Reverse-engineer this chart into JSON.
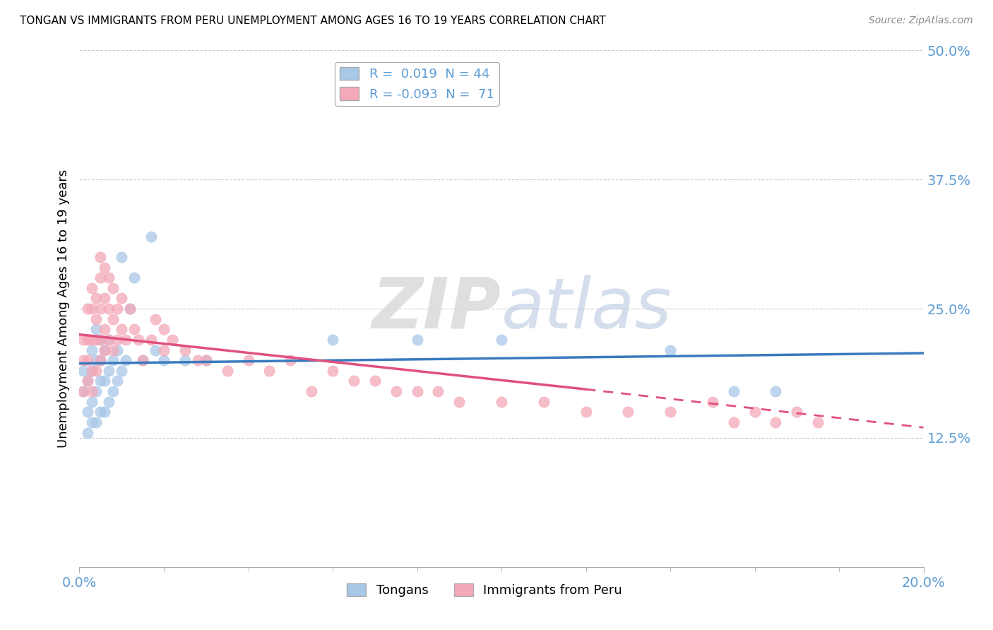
{
  "title": "TONGAN VS IMMIGRANTS FROM PERU UNEMPLOYMENT AMONG AGES 16 TO 19 YEARS CORRELATION CHART",
  "source": "Source: ZipAtlas.com",
  "ylabel": "Unemployment Among Ages 16 to 19 years",
  "xlim": [
    0.0,
    0.2
  ],
  "ylim": [
    0.0,
    0.5
  ],
  "ytick_vals": [
    0.125,
    0.25,
    0.375,
    0.5
  ],
  "blue_color": "#a8c8e8",
  "pink_color": "#f4a8b8",
  "blue_line_color": "#3a7abf",
  "pink_line_color": "#e05080",
  "blue_x": [
    0.001,
    0.001,
    0.002,
    0.002,
    0.002,
    0.003,
    0.003,
    0.003,
    0.003,
    0.004,
    0.004,
    0.004,
    0.004,
    0.005,
    0.005,
    0.005,
    0.005,
    0.006,
    0.006,
    0.006,
    0.007,
    0.007,
    0.007,
    0.008,
    0.008,
    0.009,
    0.009,
    0.01,
    0.01,
    0.011,
    0.012,
    0.013,
    0.015,
    0.017,
    0.018,
    0.02,
    0.025,
    0.03,
    0.06,
    0.08,
    0.1,
    0.14,
    0.155,
    0.165
  ],
  "blue_y": [
    0.17,
    0.19,
    0.13,
    0.15,
    0.18,
    0.14,
    0.16,
    0.19,
    0.21,
    0.14,
    0.17,
    0.2,
    0.23,
    0.15,
    0.18,
    0.2,
    0.22,
    0.15,
    0.18,
    0.21,
    0.16,
    0.19,
    0.22,
    0.17,
    0.2,
    0.18,
    0.21,
    0.19,
    0.3,
    0.2,
    0.25,
    0.28,
    0.2,
    0.32,
    0.21,
    0.2,
    0.2,
    0.2,
    0.22,
    0.22,
    0.22,
    0.21,
    0.17,
    0.17
  ],
  "pink_x": [
    0.001,
    0.001,
    0.001,
    0.002,
    0.002,
    0.002,
    0.002,
    0.003,
    0.003,
    0.003,
    0.003,
    0.003,
    0.004,
    0.004,
    0.004,
    0.004,
    0.005,
    0.005,
    0.005,
    0.005,
    0.005,
    0.006,
    0.006,
    0.006,
    0.006,
    0.007,
    0.007,
    0.007,
    0.008,
    0.008,
    0.008,
    0.009,
    0.009,
    0.01,
    0.01,
    0.011,
    0.012,
    0.013,
    0.014,
    0.015,
    0.017,
    0.018,
    0.02,
    0.02,
    0.022,
    0.025,
    0.028,
    0.03,
    0.035,
    0.04,
    0.045,
    0.05,
    0.055,
    0.06,
    0.065,
    0.07,
    0.075,
    0.08,
    0.085,
    0.09,
    0.1,
    0.11,
    0.12,
    0.13,
    0.14,
    0.15,
    0.155,
    0.16,
    0.165,
    0.17,
    0.175
  ],
  "pink_y": [
    0.17,
    0.2,
    0.22,
    0.18,
    0.2,
    0.22,
    0.25,
    0.17,
    0.19,
    0.22,
    0.25,
    0.27,
    0.19,
    0.22,
    0.24,
    0.26,
    0.2,
    0.22,
    0.25,
    0.28,
    0.3,
    0.21,
    0.23,
    0.26,
    0.29,
    0.22,
    0.25,
    0.28,
    0.21,
    0.24,
    0.27,
    0.22,
    0.25,
    0.23,
    0.26,
    0.22,
    0.25,
    0.23,
    0.22,
    0.2,
    0.22,
    0.24,
    0.21,
    0.23,
    0.22,
    0.21,
    0.2,
    0.2,
    0.19,
    0.2,
    0.19,
    0.2,
    0.17,
    0.19,
    0.18,
    0.18,
    0.17,
    0.17,
    0.17,
    0.16,
    0.16,
    0.16,
    0.15,
    0.15,
    0.15,
    0.16,
    0.14,
    0.15,
    0.14,
    0.15,
    0.14
  ],
  "watermark_zip": "ZIP",
  "watermark_atlas": "atlas",
  "background_color": "#ffffff",
  "grid_color": "#cccccc",
  "label_color": "#5b9bd5"
}
